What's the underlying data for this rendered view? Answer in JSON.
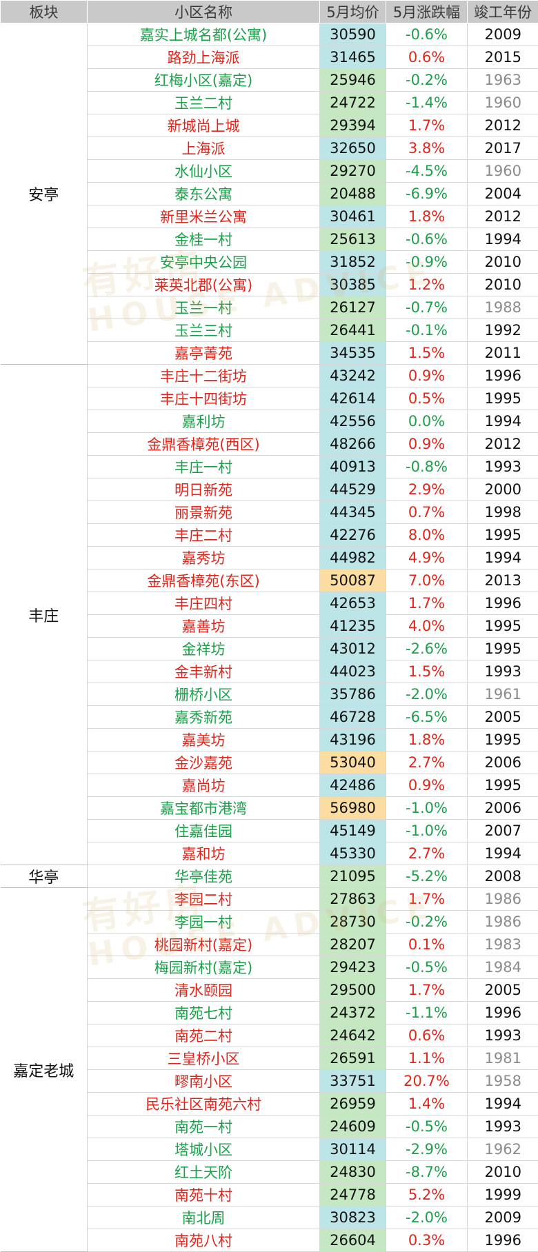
{
  "header": [
    "板块",
    "小区名称",
    "5月均价",
    "5月涨跌幅",
    "竣工年份"
  ],
  "watermark": {
    "cn": "有好房",
    "en": "HOUSE ADVICE"
  },
  "colors": {
    "up": "#e0251b",
    "down": "#1aa14a",
    "price_blue": "#bde4e6",
    "price_green": "#c5e7c2",
    "price_orange": "#fbdca1",
    "header_bg": "#c9c9c9"
  },
  "groups": [
    {
      "board": "安亭",
      "rows": [
        {
          "name": "嘉实上城名都(公寓)",
          "price": "30590",
          "change": "-0.6%",
          "year": "2009",
          "trend": "down",
          "bg": "blue",
          "old": false
        },
        {
          "name": "路劲上海派",
          "price": "31465",
          "change": "0.6%",
          "year": "2015",
          "trend": "up",
          "bg": "blue",
          "old": false
        },
        {
          "name": "红梅小区(嘉定)",
          "price": "25946",
          "change": "-0.2%",
          "year": "1963",
          "trend": "down",
          "bg": "green",
          "old": true
        },
        {
          "name": "玉兰二村",
          "price": "24722",
          "change": "-1.4%",
          "year": "1960",
          "trend": "down",
          "bg": "green",
          "old": true
        },
        {
          "name": "新城尚上城",
          "price": "29394",
          "change": "1.7%",
          "year": "2012",
          "trend": "up",
          "bg": "green",
          "old": false
        },
        {
          "name": "上海派",
          "price": "32650",
          "change": "3.8%",
          "year": "2017",
          "trend": "up",
          "bg": "blue",
          "old": false
        },
        {
          "name": "水仙小区",
          "price": "29270",
          "change": "-4.5%",
          "year": "1960",
          "trend": "down",
          "bg": "green",
          "old": true
        },
        {
          "name": "泰东公寓",
          "price": "20488",
          "change": "-6.9%",
          "year": "2004",
          "trend": "down",
          "bg": "green",
          "old": false
        },
        {
          "name": "新里米兰公寓",
          "price": "30461",
          "change": "1.8%",
          "year": "2012",
          "trend": "up",
          "bg": "blue",
          "old": false
        },
        {
          "name": "金桂一村",
          "price": "25613",
          "change": "-0.6%",
          "year": "1994",
          "trend": "down",
          "bg": "green",
          "old": false
        },
        {
          "name": "安亭中央公园",
          "price": "31852",
          "change": "-0.9%",
          "year": "2010",
          "trend": "down",
          "bg": "blue",
          "old": false
        },
        {
          "name": "莱英北郡(公寓)",
          "price": "30385",
          "change": "1.2%",
          "year": "2010",
          "trend": "up",
          "bg": "blue",
          "old": false
        },
        {
          "name": "玉兰一村",
          "price": "26127",
          "change": "-0.7%",
          "year": "1988",
          "trend": "down",
          "bg": "green",
          "old": true
        },
        {
          "name": "玉兰三村",
          "price": "26441",
          "change": "-0.1%",
          "year": "1992",
          "trend": "down",
          "bg": "green",
          "old": false
        },
        {
          "name": "嘉亭菁苑",
          "price": "34535",
          "change": "1.5%",
          "year": "2011",
          "trend": "up",
          "bg": "blue",
          "old": false
        }
      ]
    },
    {
      "board": "丰庄",
      "rows": [
        {
          "name": "丰庄十二街坊",
          "price": "43242",
          "change": "0.9%",
          "year": "1996",
          "trend": "up",
          "bg": "blue",
          "old": false
        },
        {
          "name": "丰庄十四街坊",
          "price": "42614",
          "change": "0.5%",
          "year": "1995",
          "trend": "up",
          "bg": "blue",
          "old": false
        },
        {
          "name": "嘉利坊",
          "price": "42556",
          "change": "0.0%",
          "year": "1994",
          "trend": "down",
          "bg": "blue",
          "old": false
        },
        {
          "name": "金鼎香樟苑(西区)",
          "price": "48266",
          "change": "0.9%",
          "year": "2012",
          "trend": "up",
          "bg": "blue",
          "old": false
        },
        {
          "name": "丰庄一村",
          "price": "40913",
          "change": "-0.8%",
          "year": "1993",
          "trend": "down",
          "bg": "blue",
          "old": false
        },
        {
          "name": "明日新苑",
          "price": "44529",
          "change": "2.9%",
          "year": "2000",
          "trend": "up",
          "bg": "blue",
          "old": false
        },
        {
          "name": "丽景新苑",
          "price": "44345",
          "change": "0.7%",
          "year": "1998",
          "trend": "up",
          "bg": "blue",
          "old": false
        },
        {
          "name": "丰庄二村",
          "price": "42276",
          "change": "8.0%",
          "year": "1995",
          "trend": "up",
          "bg": "blue",
          "old": false
        },
        {
          "name": "嘉秀坊",
          "price": "44982",
          "change": "4.9%",
          "year": "1994",
          "trend": "up",
          "bg": "blue",
          "old": false
        },
        {
          "name": "金鼎香樟苑(东区)",
          "price": "50087",
          "change": "7.0%",
          "year": "2013",
          "trend": "up",
          "bg": "orange",
          "old": false
        },
        {
          "name": "丰庄四村",
          "price": "42653",
          "change": "1.7%",
          "year": "1996",
          "trend": "up",
          "bg": "blue",
          "old": false
        },
        {
          "name": "嘉善坊",
          "price": "41235",
          "change": "4.0%",
          "year": "1995",
          "trend": "up",
          "bg": "blue",
          "old": false
        },
        {
          "name": "金祥坊",
          "price": "43012",
          "change": "-2.6%",
          "year": "1995",
          "trend": "down",
          "bg": "blue",
          "old": false
        },
        {
          "name": "金丰新村",
          "price": "44023",
          "change": "1.5%",
          "year": "1993",
          "trend": "up",
          "bg": "blue",
          "old": false
        },
        {
          "name": "栅桥小区",
          "price": "35786",
          "change": "-2.0%",
          "year": "1961",
          "trend": "down",
          "bg": "blue",
          "old": true
        },
        {
          "name": "嘉秀新苑",
          "price": "46728",
          "change": "-6.5%",
          "year": "2005",
          "trend": "down",
          "bg": "blue",
          "old": false
        },
        {
          "name": "嘉美坊",
          "price": "43196",
          "change": "1.8%",
          "year": "1995",
          "trend": "up",
          "bg": "blue",
          "old": false
        },
        {
          "name": "金沙嘉苑",
          "price": "53040",
          "change": "2.7%",
          "year": "2006",
          "trend": "up",
          "bg": "orange",
          "old": false
        },
        {
          "name": "嘉尚坊",
          "price": "42486",
          "change": "0.9%",
          "year": "1995",
          "trend": "up",
          "bg": "blue",
          "old": false
        },
        {
          "name": "嘉宝都市港湾",
          "price": "56980",
          "change": "-1.0%",
          "year": "2006",
          "trend": "down",
          "bg": "orange",
          "old": false
        },
        {
          "name": "住嘉佳园",
          "price": "45149",
          "change": "-1.0%",
          "year": "2007",
          "trend": "down",
          "bg": "blue",
          "old": false
        },
        {
          "name": "嘉和坊",
          "price": "45330",
          "change": "2.7%",
          "year": "1994",
          "trend": "up",
          "bg": "blue",
          "old": false
        }
      ]
    },
    {
      "board": "华亭",
      "rows": [
        {
          "name": "华亭佳苑",
          "price": "21095",
          "change": "-5.2%",
          "year": "2008",
          "trend": "down",
          "bg": "green",
          "old": false
        }
      ]
    },
    {
      "board": "嘉定老城",
      "rows": [
        {
          "name": "李园二村",
          "price": "27863",
          "change": "1.7%",
          "year": "1986",
          "trend": "up",
          "bg": "green",
          "old": true
        },
        {
          "name": "李园一村",
          "price": "28730",
          "change": "-0.2%",
          "year": "1986",
          "trend": "down",
          "bg": "green",
          "old": true
        },
        {
          "name": "桃园新村(嘉定)",
          "price": "28207",
          "change": "0.1%",
          "year": "1983",
          "trend": "up",
          "bg": "green",
          "old": true
        },
        {
          "name": "梅园新村(嘉定)",
          "price": "29423",
          "change": "-0.5%",
          "year": "1984",
          "trend": "down",
          "bg": "green",
          "old": true
        },
        {
          "name": "清水颐园",
          "price": "29500",
          "change": "1.7%",
          "year": "2005",
          "trend": "up",
          "bg": "green",
          "old": false
        },
        {
          "name": "南苑七村",
          "price": "24372",
          "change": "-1.1%",
          "year": "1996",
          "trend": "down",
          "bg": "green",
          "old": false
        },
        {
          "name": "南苑二村",
          "price": "24642",
          "change": "0.6%",
          "year": "1993",
          "trend": "up",
          "bg": "green",
          "old": false
        },
        {
          "name": "三皇桥小区",
          "price": "26591",
          "change": "1.1%",
          "year": "1981",
          "trend": "up",
          "bg": "green",
          "old": true
        },
        {
          "name": "疁南小区",
          "price": "33751",
          "change": "20.7%",
          "year": "1958",
          "trend": "up",
          "bg": "blue",
          "old": true
        },
        {
          "name": "民乐社区南苑六村",
          "price": "26959",
          "change": "1.4%",
          "year": "1994",
          "trend": "up",
          "bg": "green",
          "old": false
        },
        {
          "name": "南苑一村",
          "price": "24609",
          "change": "-0.5%",
          "year": "1993",
          "trend": "down",
          "bg": "green",
          "old": false
        },
        {
          "name": "塔城小区",
          "price": "30114",
          "change": "-2.9%",
          "year": "1962",
          "trend": "down",
          "bg": "blue",
          "old": true
        },
        {
          "name": "红土天阶",
          "price": "24830",
          "change": "-8.7%",
          "year": "2010",
          "trend": "down",
          "bg": "green",
          "old": false
        },
        {
          "name": "南苑十村",
          "price": "24778",
          "change": "5.2%",
          "year": "1999",
          "trend": "up",
          "bg": "green",
          "old": false
        },
        {
          "name": "南北周",
          "price": "30823",
          "change": "-2.0%",
          "year": "2009",
          "trend": "down",
          "bg": "blue",
          "old": false
        },
        {
          "name": "南苑八村",
          "price": "26604",
          "change": "0.3%",
          "year": "1996",
          "trend": "up",
          "bg": "green",
          "old": false
        }
      ]
    }
  ]
}
